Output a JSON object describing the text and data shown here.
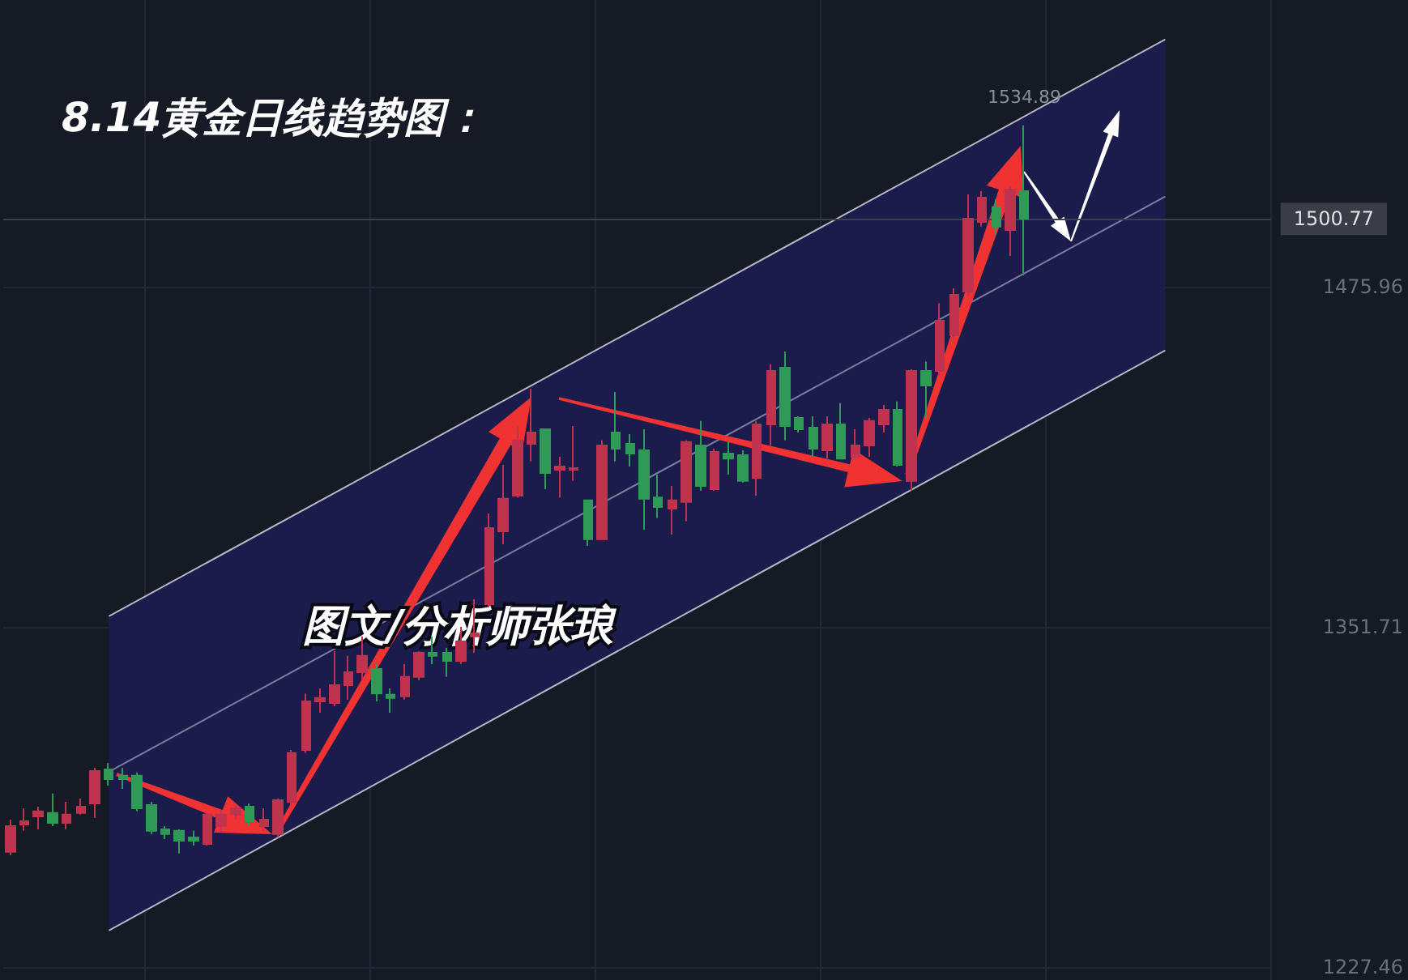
{
  "chart_data": {
    "type": "candlestick",
    "title": "8.14黄金日线趋势图：",
    "annotations": [
      "图文/分析师张琅",
      {
        "text": "1534.89",
        "y": 1534.89
      }
    ],
    "categories": [
      null,
      null,
      null,
      null,
      null,
      null,
      null,
      null,
      null,
      null,
      null,
      null,
      null,
      null,
      null,
      null,
      null,
      null,
      null,
      null,
      null,
      null,
      null,
      null,
      null,
      null,
      null,
      null,
      null,
      null,
      null,
      null,
      null,
      null,
      null,
      null,
      null,
      null,
      null,
      null,
      null,
      null,
      null,
      null,
      null,
      null,
      null,
      null,
      null,
      null,
      null,
      null,
      null,
      null,
      null,
      null,
      null,
      null,
      null,
      null,
      null,
      null,
      null,
      null,
      null,
      null,
      null,
      null,
      null,
      null,
      null,
      null,
      null,
      null,
      null,
      null,
      null,
      null,
      null,
      null,
      null,
      null,
      null,
      null,
      null,
      null,
      null,
      null,
      null,
      null
    ],
    "ohlc": [
      [
        1269.5,
        1281.3,
        1268.3,
        1278.9
      ],
      [
        1279.5,
        1285.4,
        1277.2,
        1280.7
      ],
      [
        1282.5,
        1286.0,
        1277.7,
        1284.3
      ],
      [
        1283.7,
        1290.8,
        1278.9,
        1280.1
      ],
      [
        1280.1,
        1287.8,
        1277.7,
        1283.1
      ],
      [
        1283.7,
        1289.0,
        1283.1,
        1286.0
      ],
      [
        1287.2,
        1300.2,
        1281.9,
        1299.0
      ],
      [
        1299.6,
        1302.0,
        1293.7,
        1296.1
      ],
      [
        1297.3,
        1300.2,
        1292.5,
        1296.1
      ],
      [
        1297.3,
        1298.5,
        1284.3,
        1285.4
      ],
      [
        1286.6,
        1287.8,
        1276.0,
        1277.2
      ],
      [
        1277.7,
        1278.9,
        1274.2,
        1276.0
      ],
      [
        1277.2,
        1277.7,
        1268.9,
        1273.6
      ],
      [
        1274.8,
        1277.2,
        1271.8,
        1273.6
      ],
      [
        1272.4,
        1283.7,
        1271.8,
        1283.1
      ],
      [
        1278.9,
        1284.8,
        1276.6,
        1283.1
      ],
      [
        1283.1,
        1286.6,
        1281.3,
        1285.4
      ],
      [
        1286.0,
        1287.2,
        1278.9,
        1280.7
      ],
      [
        1278.9,
        1285.4,
        1277.2,
        1281.3
      ],
      [
        1276.0,
        1289.0,
        1274.8,
        1288.4
      ],
      [
        1287.8,
        1306.7,
        1286.6,
        1305.6
      ],
      [
        1306.7,
        1327.4,
        1305.6,
        1324.5
      ],
      [
        1324.5,
        1329.2,
        1320.3,
        1325.7
      ],
      [
        1323.9,
        1342.8,
        1322.7,
        1330.4
      ],
      [
        1330.4,
        1341.1,
        1325.1,
        1335.1
      ],
      [
        1335.1,
        1348.2,
        1332.2,
        1341.1
      ],
      [
        1336.3,
        1338.1,
        1324.5,
        1327.4
      ],
      [
        1326.9,
        1329.2,
        1320.3,
        1325.7
      ],
      [
        1326.3,
        1338.1,
        1325.1,
        1333.4
      ],
      [
        1333.4,
        1342.8,
        1332.2,
        1342.2
      ],
      [
        1342.2,
        1348.2,
        1338.1,
        1341.1
      ],
      [
        1342.2,
        1344.0,
        1333.4,
        1339.3
      ],
      [
        1339.3,
        1351.7,
        1338.1,
        1346.4
      ],
      [
        1348.2,
        1361.8,
        1342.2,
        1349.3
      ],
      [
        1360.0,
        1393.1,
        1358.8,
        1387.8
      ],
      [
        1386.6,
        1410.9,
        1381.9,
        1398.5
      ],
      [
        1399.6,
        1425.1,
        1399.0,
        1419.8
      ],
      [
        1418.6,
        1438.7,
        1412.1,
        1422.7
      ],
      [
        1423.9,
        1423.9,
        1402.0,
        1407.9
      ],
      [
        1409.1,
        1413.8,
        1399.0,
        1410.3
      ],
      [
        1409.1,
        1425.1,
        1405.0,
        1409.7
      ],
      [
        1397.9,
        1397.9,
        1381.3,
        1383.7
      ],
      [
        1383.7,
        1419.8,
        1383.7,
        1418.0
      ],
      [
        1422.7,
        1437.5,
        1412.1,
        1416.8
      ],
      [
        1418.6,
        1422.1,
        1410.3,
        1415.0
      ],
      [
        1416.2,
        1423.9,
        1387.2,
        1398.5
      ],
      [
        1399.0,
        1407.3,
        1391.4,
        1395.5
      ],
      [
        1394.9,
        1403.2,
        1385.4,
        1397.9
      ],
      [
        1397.3,
        1419.8,
        1390.2,
        1419.2
      ],
      [
        1418.0,
        1426.9,
        1401.4,
        1403.2
      ],
      [
        1402.0,
        1416.8,
        1401.4,
        1415.6
      ],
      [
        1415.0,
        1419.2,
        1407.3,
        1413.2
      ],
      [
        1414.4,
        1416.2,
        1404.4,
        1405.0
      ],
      [
        1406.1,
        1426.9,
        1399.6,
        1425.7
      ],
      [
        1425.7,
        1447.6,
        1418.0,
        1445.2
      ],
      [
        1446.4,
        1452.3,
        1419.8,
        1425.1
      ],
      [
        1428.0,
        1428.6,
        1422.7,
        1423.9
      ],
      [
        1424.5,
        1428.6,
        1413.8,
        1416.8
      ],
      [
        1416.2,
        1428.6,
        1413.2,
        1425.7
      ],
      [
        1425.7,
        1433.4,
        1413.2,
        1413.2
      ],
      [
        1413.8,
        1423.9,
        1413.2,
        1418.0
      ],
      [
        1418.0,
        1428.0,
        1413.8,
        1426.9
      ],
      [
        1425.7,
        1432.8,
        1422.7,
        1431.0
      ],
      [
        1431.0,
        1434.0,
        1410.3,
        1410.9
      ],
      [
        1405.0,
        1445.8,
        1401.4,
        1445.2
      ],
      [
        1445.2,
        1448.7,
        1428.0,
        1439.9
      ],
      [
        1445.2,
        1470.0,
        1443.4,
        1463.5
      ],
      [
        1458.2,
        1475.4,
        1456.4,
        1473.0
      ],
      [
        1474.2,
        1509.7,
        1472.4,
        1500.8
      ],
      [
        1499.6,
        1510.9,
        1497.9,
        1508.5
      ],
      [
        1505.0,
        1507.9,
        1494.9,
        1497.9
      ],
      [
        1496.7,
        1512.7,
        1487.2,
        1511.5
      ],
      [
        1510.9,
        1534.89,
        1480.1,
        1500.77
      ],
      null,
      null,
      null,
      null,
      null,
      null,
      null,
      null,
      null,
      null,
      null,
      null,
      null,
      null,
      null,
      null,
      null
    ],
    "series": [
      {
        "type": "line",
        "color": "#b4b4c4",
        "values": [
          null,
          null,
          null,
          null,
          null,
          null,
          null,
          1355.6,
          null,
          null,
          null,
          null,
          null,
          null,
          null,
          null,
          null,
          null,
          null,
          null,
          null,
          null,
          null,
          null,
          null,
          null,
          null,
          null,
          null,
          null,
          null,
          null,
          null,
          null,
          null,
          null,
          null,
          null,
          null,
          null,
          null,
          null,
          null,
          null,
          null,
          null,
          null,
          null,
          null,
          null,
          null,
          null,
          null,
          null,
          null,
          null,
          null,
          null,
          null,
          null,
          null,
          null,
          null,
          null,
          null,
          null,
          null,
          null,
          null,
          null,
          null,
          null,
          null,
          null,
          null,
          null,
          null,
          null,
          null,
          null,
          null,
          null,
          1566.3,
          null,
          null,
          null,
          null,
          null,
          null,
          null
        ]
      },
      {
        "type": "line",
        "color": "#7c7c9e",
        "values": [
          null,
          null,
          null,
          null,
          null,
          null,
          null,
          1298.8,
          null,
          null,
          null,
          null,
          null,
          null,
          null,
          null,
          null,
          null,
          null,
          null,
          null,
          null,
          null,
          null,
          null,
          null,
          null,
          null,
          null,
          null,
          null,
          null,
          null,
          null,
          null,
          null,
          null,
          null,
          null,
          null,
          null,
          null,
          null,
          null,
          null,
          null,
          null,
          null,
          null,
          null,
          null,
          null,
          null,
          null,
          null,
          null,
          null,
          null,
          null,
          null,
          null,
          null,
          null,
          null,
          null,
          null,
          null,
          null,
          null,
          null,
          null,
          null,
          null,
          null,
          null,
          null,
          null,
          null,
          null,
          null,
          null,
          null,
          1508.9,
          null,
          null,
          null,
          null,
          null,
          null,
          null
        ],
        "lower": [
          null,
          null,
          null,
          null,
          null,
          null,
          null,
          1240.8,
          null,
          null,
          null,
          null,
          null,
          null,
          null,
          null,
          null,
          null,
          null,
          null,
          null,
          null,
          null,
          null,
          null,
          null,
          null,
          null,
          null,
          null,
          null,
          null,
          null,
          null,
          null,
          null,
          null,
          null,
          null,
          null,
          null,
          null,
          null,
          null,
          null,
          null,
          null,
          null,
          null,
          null,
          null,
          null,
          null,
          null,
          null,
          null,
          null,
          null,
          null,
          null,
          null,
          null,
          null,
          null,
          null,
          null,
          null,
          null,
          null,
          null,
          null,
          null,
          null,
          null,
          null,
          null,
          null,
          null,
          null,
          null,
          null,
          null,
          1452.7,
          null,
          null,
          null,
          null,
          null,
          null,
          null
        ],
        "upper": [
          null,
          null,
          null,
          null,
          null,
          null,
          null,
          1355.6,
          null,
          null,
          null,
          null,
          null,
          null,
          null,
          null,
          null,
          null,
          null,
          null,
          null,
          null,
          null,
          null,
          null,
          null,
          null,
          null,
          null,
          null,
          null,
          null,
          null,
          null,
          null,
          null,
          null,
          null,
          null,
          null,
          null,
          null,
          null,
          null,
          null,
          null,
          null,
          null,
          null,
          null,
          null,
          null,
          null,
          null,
          null,
          null,
          null,
          null,
          null,
          null,
          null,
          null,
          null,
          null,
          null,
          null,
          null,
          null,
          null,
          null,
          null,
          null,
          null,
          null,
          null,
          null,
          null,
          null,
          null,
          null,
          null,
          null,
          1566.3,
          null,
          null,
          null,
          null,
          null,
          null,
          null
        ]
      },
      {
        "type": "line",
        "color": "#b4b4c4",
        "values": [
          null,
          null,
          null,
          null,
          null,
          null,
          null,
          1240.8,
          null,
          null,
          null,
          null,
          null,
          null,
          null,
          null,
          null,
          null,
          null,
          null,
          null,
          null,
          null,
          null,
          null,
          null,
          null,
          null,
          null,
          null,
          null,
          null,
          null,
          null,
          null,
          null,
          null,
          null,
          null,
          null,
          null,
          null,
          null,
          null,
          null,
          null,
          null,
          null,
          null,
          null,
          null,
          null,
          null,
          null,
          null,
          null,
          null,
          null,
          null,
          null,
          null,
          null,
          null,
          null,
          null,
          null,
          null,
          null,
          null,
          null,
          null,
          null,
          null,
          null,
          null,
          null,
          null,
          null,
          null,
          null,
          null,
          null,
          1452.7,
          null,
          null,
          null,
          null,
          null,
          null,
          null
        ]
      }
    ],
    "ref_lines": [
      {
        "axis": "y",
        "value": 1500.77,
        "label": "1500.77",
        "color": "#3c3f4b",
        "line_style": "solid"
      }
    ],
    "ylim": [
      1222.7,
      1580.7
    ],
    "yticks": [
      1227.46,
      1351.71,
      1475.96
    ],
    "grid": true,
    "tick_labels": "y"
  }
}
